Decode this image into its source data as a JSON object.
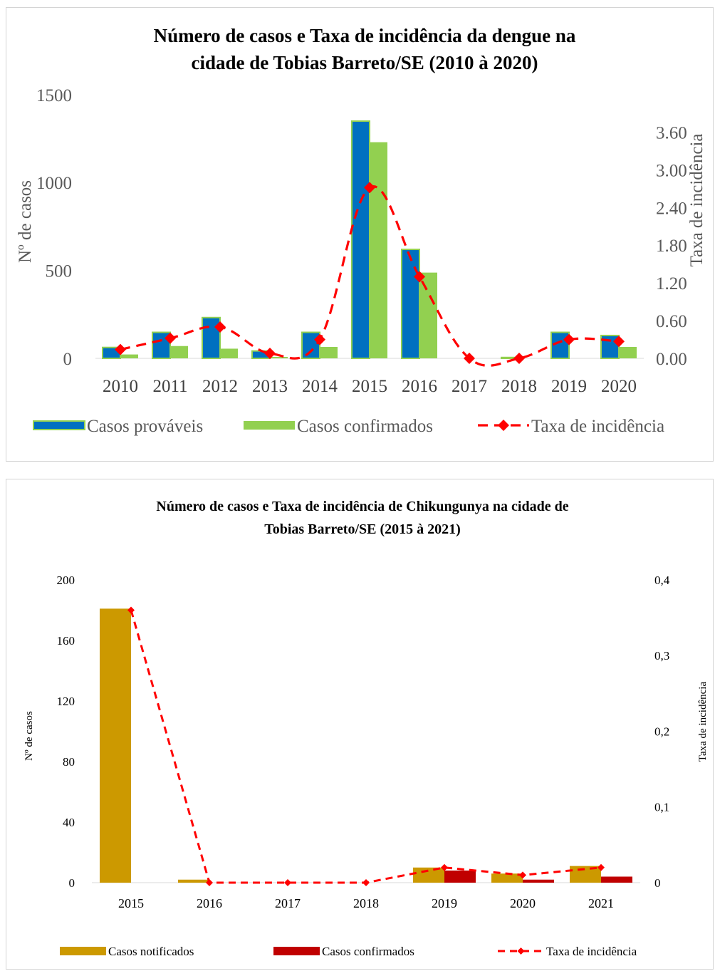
{
  "chart_data": [
    {
      "type": "bar",
      "title_lines": [
        "Número de casos e Taxa de incidência da dengue na",
        "cidade de Tobias Barreto/SE (2010 à 2020)"
      ],
      "ylabel": "Nº de casos",
      "y2label": "Taxa  de incidência",
      "categories": [
        "2010",
        "2011",
        "2012",
        "2013",
        "2014",
        "2015",
        "2016",
        "2017",
        "2018",
        "2019",
        "2020"
      ],
      "ylim": [
        0,
        1500
      ],
      "yticks": [
        "0",
        "500",
        "1000",
        "1500"
      ],
      "y2lim": [
        0,
        4.2
      ],
      "y2ticks": [
        "0.00",
        "0.60",
        "1.20",
        "1.80",
        "2.40",
        "3.00",
        "3.60"
      ],
      "legend_position": "bottom",
      "series": [
        {
          "name": "Casos prováveis",
          "kind": "bar",
          "color": "#0070c0",
          "border": "#92d050",
          "values": [
            62,
            148,
            232,
            42,
            148,
            1350,
            620,
            0,
            5,
            148,
            130
          ]
        },
        {
          "name": "Casos confirmados",
          "kind": "bar",
          "color": "#92d050",
          "values": [
            22,
            70,
            55,
            8,
            65,
            1230,
            488,
            0,
            0,
            0,
            65
          ]
        },
        {
          "name": "Taxa de incidência",
          "kind": "line",
          "color": "#ff0000",
          "values": [
            0.14,
            0.32,
            0.5,
            0.08,
            0.3,
            2.72,
            1.3,
            0.0,
            0.0,
            0.3,
            0.27
          ]
        }
      ]
    },
    {
      "type": "bar",
      "title_lines": [
        "Número de casos e Taxa de incidência de Chikungunya na cidade de",
        "Tobias Barreto/SE (2015 à 2021)"
      ],
      "ylabel": "Nº de casos",
      "y2label": "Taxa de incidência",
      "categories": [
        "2015",
        "2016",
        "2017",
        "2018",
        "2019",
        "2020",
        "2021"
      ],
      "ylim": [
        0,
        200
      ],
      "yticks": [
        "0",
        "40",
        "80",
        "120",
        "160",
        "200"
      ],
      "y2lim": [
        0,
        0.4
      ],
      "y2ticks": [
        "0",
        "0,1",
        "0,2",
        "0,3",
        "0,4"
      ],
      "legend_position": "bottom",
      "series": [
        {
          "name": "Casos notificados",
          "kind": "bar",
          "color": "#cc9900",
          "values": [
            181,
            2,
            0,
            0,
            10,
            6,
            11
          ]
        },
        {
          "name": "Casos confirmados",
          "kind": "bar",
          "color": "#c00000",
          "values": [
            0,
            0,
            0,
            0,
            8,
            2,
            4
          ]
        },
        {
          "name": "Taxa de incidência",
          "kind": "line",
          "color": "#ff0000",
          "values": [
            0.36,
            0.0,
            0.0,
            0.0,
            0.02,
            0.01,
            0.02
          ]
        }
      ]
    }
  ]
}
